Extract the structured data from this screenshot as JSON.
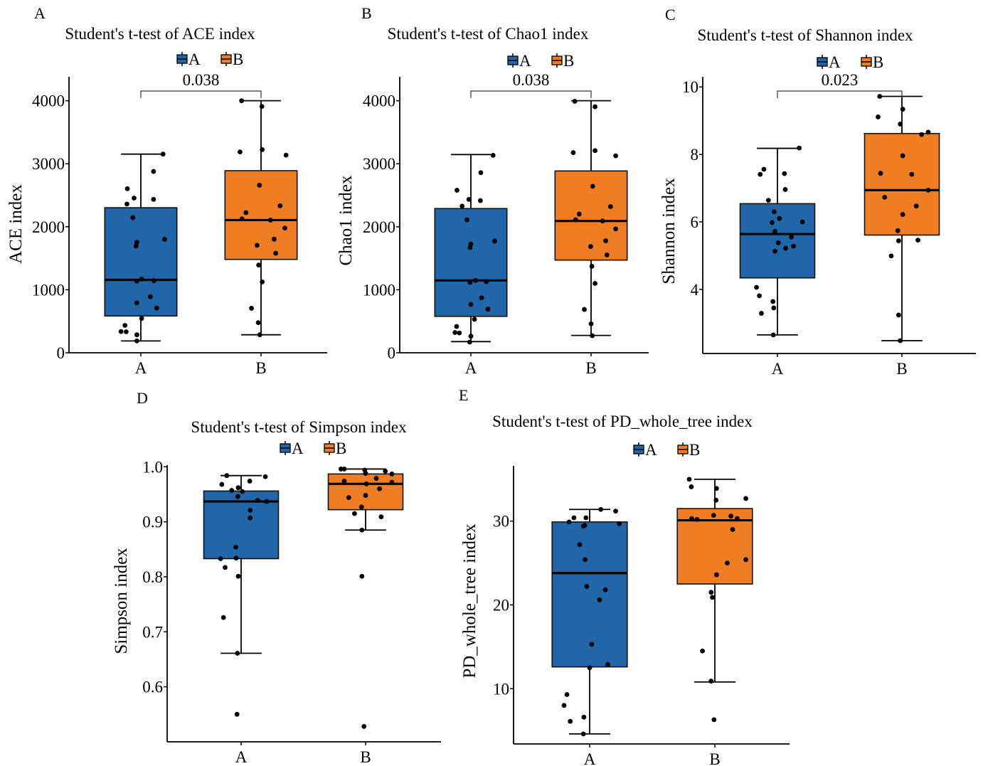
{
  "colors": {
    "A": "#2066A8",
    "B": "#EE7D23"
  },
  "chart_data": [
    {
      "panel_label": "A",
      "type": "box",
      "title": "Student's t-test of ACE index",
      "ylabel": "ACE index",
      "xlabel": "",
      "categories": [
        "A",
        "B"
      ],
      "legend": [
        "A",
        "B"
      ],
      "legend_position": "top",
      "ylim": [
        0,
        4380
      ],
      "yticks": [
        0,
        1000,
        2000,
        3000,
        4000
      ],
      "ytick_labels": [
        "0",
        "1000",
        "2000",
        "3000",
        "4000"
      ],
      "pvalue": "0.038",
      "bracket_y": 4070,
      "boxes": [
        {
          "group": "A",
          "q1": 584,
          "median": 1157,
          "q3": 2302,
          "whisker_low": 188,
          "whisker_high": 3153
        },
        {
          "group": "B",
          "q1": 1482,
          "median": 2106,
          "q3": 2890,
          "whisker_low": 286,
          "whisker_high": 4000
        }
      ],
      "points": [
        {
          "group": "A",
          "values": [
            3153,
            2878,
            2604,
            2455,
            2435,
            2361,
            2145,
            1753,
            1694,
            1800,
            1169,
            1137,
            1145,
            890,
            792,
            710,
            545,
            435,
            337,
            333,
            286,
            188
          ],
          "jitter": [
            0.56,
            0.32,
            -0.34,
            -0.17,
            0.32,
            -0.35,
            -0.2,
            -0.1,
            -0.12,
            0.6,
            0.02,
            -0.1,
            0.33,
            0.24,
            -0.1,
            0.4,
            0.02,
            -0.4,
            -0.5,
            -0.37,
            -0.1,
            -0.1
          ]
        },
        {
          "group": "B",
          "values": [
            4000,
            3910,
            3188,
            3224,
            3137,
            2659,
            2333,
            2224,
            2125,
            2106,
            1980,
            1804,
            1706,
            1580,
            1392,
            1125,
            706,
            478,
            286
          ],
          "jitter": [
            -0.49,
            0.02,
            -0.53,
            0.03,
            0.63,
            -0.04,
            0.48,
            -0.38,
            -0.48,
            0.24,
            0.6,
            0.33,
            -0.1,
            0.37,
            -0.06,
            0.03,
            -0.24,
            -0.07,
            -0.03
          ]
        }
      ]
    },
    {
      "panel_label": "B",
      "type": "box",
      "title": "Student's t-test of Chao1 index",
      "ylabel": "Chao1 index",
      "xlabel": "",
      "categories": [
        "A",
        "B"
      ],
      "legend": [
        "A",
        "B"
      ],
      "legend_position": "top",
      "ylim": [
        0,
        4380
      ],
      "yticks": [
        0,
        1000,
        2000,
        3000,
        4000
      ],
      "ytick_labels": [
        "0",
        "1000",
        "2000",
        "3000",
        "4000"
      ],
      "pvalue": "0.038",
      "bracket_y": 4070,
      "boxes": [
        {
          "group": "A",
          "q1": 578,
          "median": 1148,
          "q3": 2289,
          "whisker_low": 177,
          "whisker_high": 3146
        },
        {
          "group": "B",
          "q1": 1471,
          "median": 2092,
          "q3": 2886,
          "whisker_low": 275,
          "whisker_high": 4000
        }
      ],
      "points": [
        {
          "group": "A",
          "values": [
            3134,
            2859,
            2580,
            2434,
            2415,
            2328,
            2111,
            1726,
            1671,
            1773,
            1148,
            1117,
            1129,
            873,
            767,
            692,
            531,
            417,
            322,
            315,
            263,
            169
          ],
          "jitter": [
            0.56,
            0.25,
            -0.35,
            -0.05,
            0.24,
            -0.22,
            -0.1,
            0.0,
            -0.02,
            0.6,
            0.12,
            -0.02,
            0.39,
            0.27,
            0.0,
            0.43,
            0.09,
            -0.36,
            -0.4,
            -0.29,
            0.0,
            -0.03
          ]
        },
        {
          "group": "B",
          "values": [
            3991,
            3905,
            3177,
            3209,
            3126,
            2643,
            2320,
            2202,
            2112,
            2092,
            1966,
            1777,
            1687,
            1553,
            1372,
            1101,
            688,
            460,
            271
          ],
          "jitter": [
            -0.41,
            0.1,
            -0.45,
            0.1,
            0.62,
            0.04,
            0.49,
            -0.3,
            -0.39,
            0.29,
            0.62,
            0.37,
            -0.01,
            0.4,
            0.02,
            0.1,
            -0.17,
            0.0,
            0.03
          ]
        }
      ]
    },
    {
      "panel_label": "C",
      "type": "box",
      "title": "Student's t-test of Shannon index",
      "ylabel": "Shannon index",
      "xlabel": "",
      "categories": [
        "A",
        "B"
      ],
      "legend": [
        "A",
        "B"
      ],
      "legend_position": "top",
      "ylim": [
        2.1,
        10.3
      ],
      "yticks": [
        4,
        6,
        8,
        10
      ],
      "ytick_labels": [
        "4",
        "6",
        "8",
        "10"
      ],
      "pvalue": "0.023",
      "bracket_y": 10.0,
      "boxes": [
        {
          "group": "A",
          "q1": 4.34,
          "median": 5.64,
          "q3": 6.54,
          "whisker_low": 2.65,
          "whisker_high": 8.18
        },
        {
          "group": "B",
          "q1": 5.61,
          "median": 6.94,
          "q3": 8.62,
          "whisker_low": 2.48,
          "whisker_high": 9.72
        }
      ],
      "points": [
        {
          "group": "A",
          "values": [
            8.19,
            7.56,
            7.41,
            7.43,
            6.96,
            6.64,
            6.3,
            6.1,
            5.98,
            6.0,
            5.72,
            5.55,
            5.38,
            5.28,
            5.22,
            5.13,
            4.06,
            3.81,
            3.64,
            3.45,
            3.29,
            2.65
          ],
          "jitter": [
            0.53,
            -0.33,
            -0.42,
            0.17,
            0.19,
            -0.22,
            -0.08,
            0.05,
            -0.13,
            0.61,
            -0.06,
            0.34,
            0.02,
            0.39,
            0.2,
            -0.06,
            -0.51,
            -0.44,
            -0.11,
            -0.09,
            -0.39,
            -0.1
          ]
        },
        {
          "group": "B",
          "values": [
            9.72,
            9.34,
            9.11,
            8.9,
            8.59,
            8.66,
            7.96,
            7.44,
            7.41,
            6.94,
            6.73,
            6.47,
            6.22,
            5.74,
            5.44,
            5.46,
            4.99,
            3.24,
            2.48
          ],
          "jitter": [
            -0.54,
            0.02,
            -0.58,
            -0.04,
            0.48,
            0.64,
            0.02,
            -0.52,
            0.24,
            0.64,
            -0.42,
            0.35,
            0.02,
            -0.1,
            -0.08,
            0.39,
            -0.26,
            -0.08,
            -0.04
          ]
        }
      ]
    },
    {
      "panel_label": "D",
      "type": "box",
      "title": "Student's t-test of Simpson index",
      "ylabel": "Simpson index",
      "xlabel": "",
      "categories": [
        "A",
        "B"
      ],
      "legend": [
        "A",
        "B"
      ],
      "legend_position": "top",
      "ylim": [
        0.5,
        1.003
      ],
      "yticks": [
        0.6,
        0.7,
        0.8,
        0.9,
        1.0
      ],
      "ytick_labels": [
        "0.6",
        "0.7",
        "0.8",
        "0.9",
        "1.0"
      ],
      "pvalue": "",
      "boxes": [
        {
          "group": "A",
          "q1": 0.833,
          "median": 0.937,
          "q3": 0.956,
          "whisker_low": 0.661,
          "whisker_high": 0.984
        },
        {
          "group": "B",
          "q1": 0.922,
          "median": 0.969,
          "q3": 0.987,
          "whisker_low": 0.885,
          "whisker_high": 0.996
        }
      ],
      "points": [
        {
          "group": "A",
          "values": [
            0.984,
            0.982,
            0.968,
            0.974,
            0.962,
            0.957,
            0.955,
            0.946,
            0.939,
            0.937,
            0.921,
            0.907,
            0.854,
            0.833,
            0.834,
            0.817,
            0.801,
            0.726,
            0.661,
            0.55
          ],
          "jitter": [
            -0.35,
            0.59,
            -0.47,
            0.21,
            -0.07,
            -0.23,
            0.03,
            -0.08,
            0.4,
            0.62,
            0.22,
            0.22,
            -0.13,
            -0.5,
            -0.12,
            -0.39,
            -0.07,
            -0.43,
            -0.09,
            -0.1
          ]
        },
        {
          "group": "B",
          "values": [
            0.996,
            0.996,
            0.994,
            0.992,
            0.988,
            0.987,
            0.979,
            0.974,
            0.972,
            0.969,
            0.96,
            0.948,
            0.944,
            0.927,
            0.915,
            0.909,
            0.885,
            0.801,
            0.528
          ],
          "jitter": [
            -0.6,
            -0.52,
            -0.02,
            0.48,
            0.0,
            0.64,
            0.26,
            -0.52,
            0.64,
            0.02,
            0.34,
            0.0,
            -0.41,
            -0.1,
            -0.27,
            0.38,
            -0.09,
            -0.09,
            -0.04
          ]
        }
      ]
    },
    {
      "panel_label": "E",
      "type": "box",
      "title": "Student's t-test of PD_whole_tree index",
      "ylabel": "PD_whole_tree index",
      "xlabel": "",
      "categories": [
        "A",
        "B"
      ],
      "legend": [
        "A",
        "B"
      ],
      "legend_position": "top",
      "ylim": [
        3.4,
        36.6
      ],
      "yticks": [
        10,
        20,
        30
      ],
      "ytick_labels": [
        "10",
        "20",
        "30"
      ],
      "pvalue": "",
      "boxes": [
        {
          "group": "A",
          "q1": 12.6,
          "median": 23.8,
          "q3": 29.9,
          "whisker_low": 4.6,
          "whisker_high": 31.4
        },
        {
          "group": "B",
          "q1": 22.5,
          "median": 30.1,
          "q3": 31.5,
          "whisker_low": 10.8,
          "whisker_high": 35.0
        }
      ],
      "points": [
        {
          "group": "A",
          "values": [
            31.4,
            31.2,
            30.4,
            30.4,
            29.9,
            29.5,
            29.4,
            29.7,
            27.2,
            25.4,
            22.2,
            21.8,
            20.6,
            15.3,
            12.9,
            12.5,
            9.3,
            8.0,
            6.6,
            6.1,
            4.6
          ],
          "jitter": [
            0.27,
            0.63,
            -0.38,
            -0.09,
            -0.5,
            -0.12,
            -0.15,
            0.72,
            -0.24,
            -0.11,
            -0.07,
            0.38,
            0.24,
            0.05,
            0.44,
            0.0,
            -0.55,
            -0.62,
            -0.14,
            -0.47,
            -0.15
          ]
        },
        {
          "group": "B",
          "values": [
            35.0,
            34.1,
            33.9,
            32.5,
            32.7,
            30.3,
            30.2,
            30.7,
            30.6,
            30.3,
            29.0,
            25.4,
            25.0,
            23.6,
            21.5,
            20.9,
            14.5,
            10.9,
            6.3
          ],
          "jitter": [
            -0.62,
            -0.57,
            0.04,
            0.03,
            0.75,
            -0.56,
            -0.43,
            -0.03,
            0.39,
            0.54,
            0.43,
            0.75,
            0.3,
            0.04,
            -0.09,
            -0.06,
            -0.3,
            -0.09,
            -0.02
          ]
        }
      ]
    }
  ]
}
